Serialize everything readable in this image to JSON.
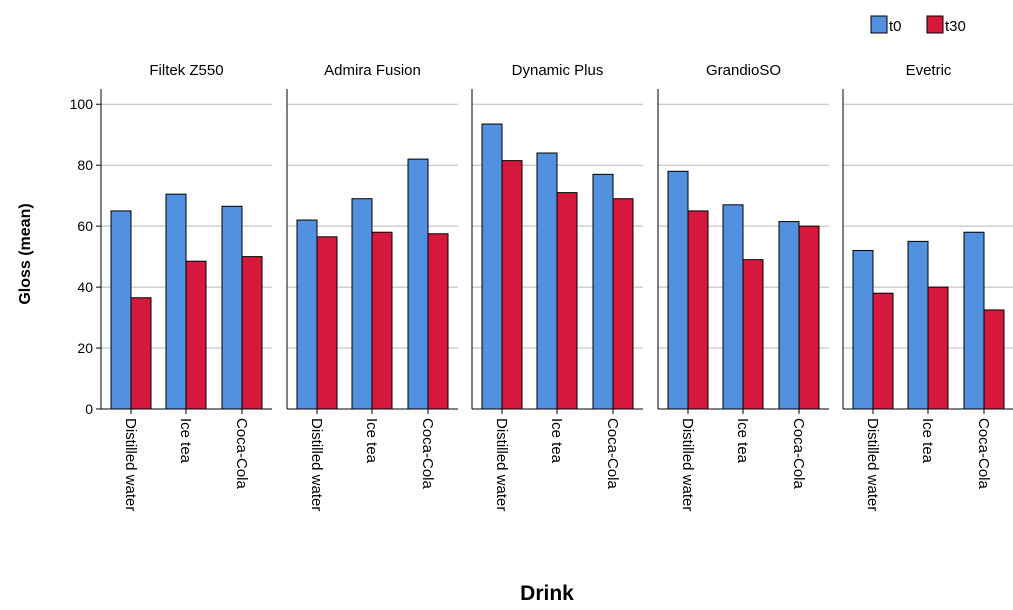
{
  "chart_data": {
    "type": "bar",
    "xlabel": "Drink",
    "ylabel": "Gloss (mean)",
    "ylim": [
      0,
      105
    ],
    "yticks": [
      0,
      20,
      40,
      60,
      80,
      100
    ],
    "grid": true,
    "legend_position": "top-right",
    "categories": [
      "Distilled water",
      "Ice tea",
      "Coca-Cola"
    ],
    "series": [
      {
        "name": "t0",
        "color": "#5191e0"
      },
      {
        "name": "t30",
        "color": "#d5183c"
      }
    ],
    "panels": [
      {
        "title": "Filtek Z550",
        "t0": [
          65,
          70.5,
          66.5
        ],
        "t30": [
          36.5,
          48.5,
          50
        ]
      },
      {
        "title": "Admira Fusion",
        "t0": [
          62,
          69,
          82
        ],
        "t30": [
          56.5,
          58,
          57.5
        ]
      },
      {
        "title": "Dynamic Plus",
        "t0": [
          93.5,
          84,
          77
        ],
        "t30": [
          81.5,
          71,
          69
        ]
      },
      {
        "title": "GrandioSO",
        "t0": [
          78,
          67,
          61.5
        ],
        "t30": [
          65,
          49,
          60
        ]
      },
      {
        "title": "Evetric",
        "t0": [
          52,
          55,
          58
        ],
        "t30": [
          38,
          40,
          32.5
        ]
      }
    ]
  }
}
